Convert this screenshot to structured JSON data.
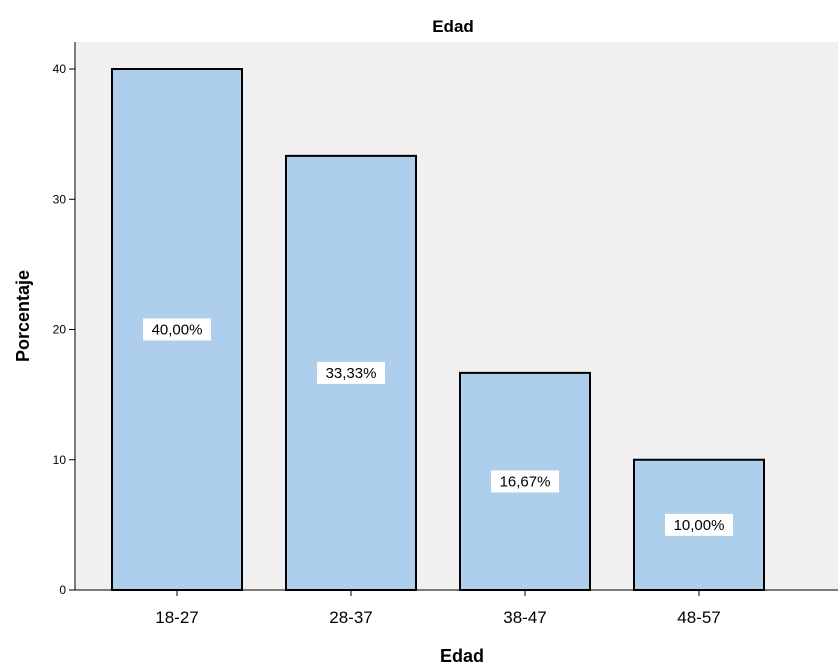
{
  "chart_data": {
    "type": "bar",
    "title": "Edad",
    "xlabel": "Edad",
    "ylabel": "Porcentaje",
    "categories": [
      "18-27",
      "28-37",
      "38-47",
      "48-57"
    ],
    "values": [
      40.0,
      33.33,
      16.67,
      10.0
    ],
    "data_labels": [
      "40,00%",
      "33,33%",
      "16,67%",
      "10,00%"
    ],
    "ylim": [
      0,
      42
    ],
    "yticks": [
      0,
      10,
      20,
      30,
      40
    ],
    "ytick_labels": [
      "0",
      "10",
      "20",
      "30",
      "40"
    ],
    "grid": false,
    "legend": "none",
    "colors": {
      "bar_fill": "#aecfec",
      "bar_stroke": "#000000",
      "plot_background": "#f0f0f0",
      "label_background": "#ffffff"
    }
  }
}
